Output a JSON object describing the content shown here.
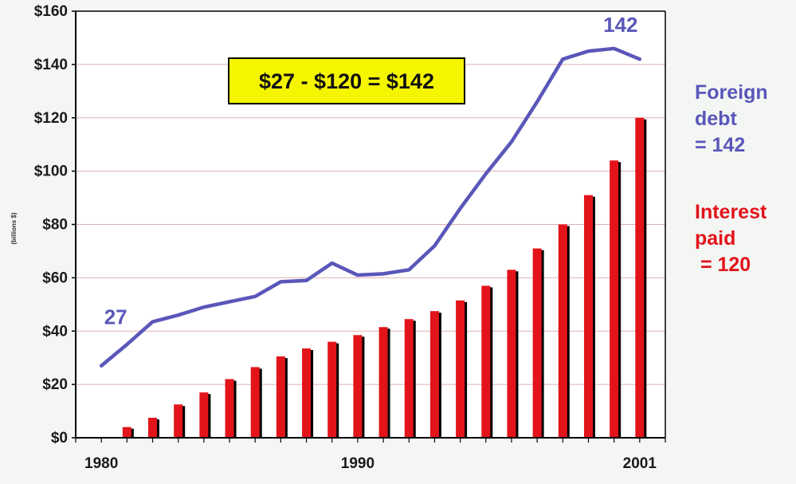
{
  "chart_data": {
    "type": "bar+line",
    "ylabel": "(billions $)",
    "ylim": [
      0,
      160
    ],
    "yticks": [
      0,
      20,
      40,
      60,
      80,
      100,
      120,
      140,
      160
    ],
    "ytick_labels": [
      "$0",
      "$20",
      "$40",
      "$60",
      "$80",
      "$100",
      "$120",
      "$140",
      "$160"
    ],
    "xlim": [
      1979,
      2002
    ],
    "xtick_years": [
      1980,
      1990,
      2001
    ],
    "xtick_labels": [
      "1980",
      "1990",
      "2001"
    ],
    "grid": true,
    "callout_text": "$27 - $120 = $142",
    "colors": {
      "line": "#5a57b9",
      "bars": "#e2141a",
      "callout_bg": "#f5f500",
      "grid": "#e0b0b0"
    },
    "bar_series": {
      "years": [
        1981,
        1982,
        1983,
        1984,
        1985,
        1986,
        1987,
        1988,
        1989,
        1990,
        1991,
        1992,
        1993,
        1994,
        1995,
        1996,
        1997,
        1998,
        1999,
        2000,
        2001
      ],
      "values": [
        4,
        7.5,
        12.5,
        17,
        22,
        26.5,
        30.5,
        33.5,
        36,
        38.5,
        41.5,
        44.5,
        47.5,
        51.5,
        57,
        63,
        71,
        80,
        91,
        104,
        120
      ]
    },
    "line_series": {
      "years": [
        1980,
        1981,
        1982,
        1983,
        1984,
        1985,
        1986,
        1987,
        1988,
        1989,
        1990,
        1991,
        1992,
        1993,
        1994,
        1995,
        1996,
        1997,
        1998,
        1999,
        2000,
        2001
      ],
      "values": [
        27,
        35,
        43.5,
        46,
        49,
        51,
        53,
        58.5,
        59,
        65.5,
        61,
        61.5,
        63,
        72,
        86,
        99,
        111,
        126,
        142,
        145,
        146,
        142
      ]
    },
    "annotations": [
      {
        "text": "27",
        "year": 1980,
        "value": 27
      },
      {
        "text": "142",
        "year": 2001,
        "value": 142
      }
    ]
  },
  "legend": {
    "foreign_lines": [
      "Foreign",
      "debt",
      "= 142"
    ],
    "interest_lines": [
      "Interest",
      "paid",
      " = 120"
    ]
  }
}
